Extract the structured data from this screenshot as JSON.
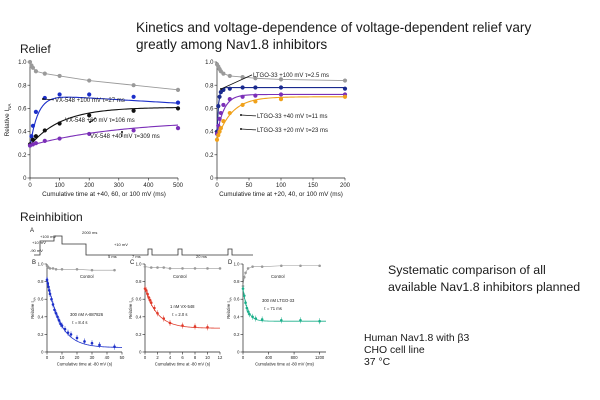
{
  "slide": {
    "title": "Kinetics and voltage-dependence of voltage-dependent relief vary greatly among Nav1.8 inhibitors",
    "relief_heading": "Relief",
    "reinhibition_heading": "Reinhibition",
    "right_note": "Systematic comparison of all available Nav1.8 inhibitors planned",
    "cell_note": [
      "Human Nav1.8 with β3",
      "CHO cell line",
      "37 °C"
    ]
  },
  "protocol": {
    "panel_letter": "A",
    "labels": [
      "+100 mV",
      "+10 mV",
      "-90 mV",
      "2000 ms",
      "5 ms",
      "7 ms",
      "+10 mV",
      "20 ms"
    ]
  },
  "colors": {
    "control": "#9a9a9a",
    "blue": "#1b2ec9",
    "black": "#111111",
    "purple": "#7b2fb8",
    "orange": "#f0a11a",
    "navy": "#1a2a8e",
    "red": "#e03a2a",
    "green": "#1aaf8a"
  },
  "chart_data": [
    {
      "id": "vx548-relief",
      "type": "line",
      "xlabel": "Cumulative time  at +40, 60, or 100 mV (ms)",
      "ylabel": "Relative I",
      "ylabel_sub": "NA",
      "xlim": [
        0,
        500
      ],
      "ylim": [
        0,
        1.0
      ],
      "xticks": [
        0,
        100,
        200,
        300,
        400,
        500
      ],
      "yticks": [
        0,
        0.2,
        0.4,
        0.6,
        0.8,
        1.0
      ],
      "ytick_labels": [
        "0",
        "0.2",
        "0.4",
        "0.6",
        "0.8",
        "1.0"
      ],
      "annotations": [
        "VX-548 +100 mV τ=27 ms",
        "VX-548 +60 mV τ=106 ms",
        "VX-548 +40 mV τ=309 ms"
      ],
      "series": [
        {
          "name": "Control",
          "color": "control",
          "x": [
            0,
            5,
            10,
            20,
            50,
            100,
            200,
            350,
            500
          ],
          "y": [
            1.0,
            0.97,
            0.95,
            0.92,
            0.9,
            0.88,
            0.84,
            0.8,
            0.76
          ]
        },
        {
          "name": "VX-548 +100 mV",
          "color": "blue",
          "x": [
            0,
            5,
            10,
            20,
            50,
            100,
            200,
            350,
            500
          ],
          "y": [
            0.28,
            0.36,
            0.45,
            0.57,
            0.69,
            0.72,
            0.72,
            0.7,
            0.65
          ],
          "fit": {
            "y0": 0.27,
            "a": 0.45,
            "tau": 27,
            "drift": -0.00015
          }
        },
        {
          "name": "VX-548 +60 mV",
          "color": "black",
          "x": [
            0,
            10,
            20,
            50,
            100,
            200,
            350,
            500
          ],
          "y": [
            0.29,
            0.33,
            0.36,
            0.41,
            0.47,
            0.54,
            0.58,
            0.6
          ],
          "fit": {
            "y0": 0.28,
            "a": 0.33,
            "tau": 106
          }
        },
        {
          "name": "VX-548 +40 mV",
          "color": "purple",
          "x": [
            0,
            10,
            20,
            50,
            100,
            200,
            350,
            500
          ],
          "y": [
            0.28,
            0.29,
            0.3,
            0.32,
            0.34,
            0.38,
            0.41,
            0.43
          ],
          "fit": {
            "y0": 0.28,
            "a": 0.22,
            "tau": 309
          }
        }
      ]
    },
    {
      "id": "ltgo33-relief",
      "type": "line",
      "xlabel": "Cumulative time  at +20, 40, or 100 mV (ms)",
      "ylabel": "",
      "xlim": [
        0,
        200
      ],
      "ylim": [
        0,
        1.0
      ],
      "xticks": [
        0,
        50,
        100,
        150,
        200
      ],
      "yticks": [
        0,
        0.2,
        0.4,
        0.6,
        0.8,
        1.0
      ],
      "ytick_labels": [
        "0",
        "0.2",
        "0.4",
        "0.6",
        "0.8",
        "1.0"
      ],
      "annotations": [
        "LTGO-33 +100 mV τ=2.5 ms",
        "LTGO-33 +40 mV τ=11 ms",
        "LTGO-33 +20 mV τ=23 ms"
      ],
      "series": [
        {
          "name": "Control",
          "color": "control",
          "x": [
            0,
            2,
            4,
            6,
            10,
            20,
            40,
            60,
            100,
            200
          ],
          "y": [
            0.98,
            0.96,
            0.94,
            0.92,
            0.9,
            0.88,
            0.87,
            0.86,
            0.85,
            0.84
          ]
        },
        {
          "name": "LTGO-33 +100 mV",
          "color": "navy",
          "x": [
            0,
            2,
            4,
            6,
            10,
            20,
            40,
            60,
            100,
            200
          ],
          "y": [
            0.4,
            0.62,
            0.7,
            0.74,
            0.76,
            0.77,
            0.78,
            0.78,
            0.78,
            0.77
          ],
          "fit": {
            "y0": 0.4,
            "a": 0.38,
            "tau": 2.5
          }
        },
        {
          "name": "LTGO-33 +40 mV",
          "color": "purple",
          "x": [
            0,
            2,
            4,
            6,
            10,
            20,
            40,
            60,
            100,
            200
          ],
          "y": [
            0.38,
            0.45,
            0.51,
            0.56,
            0.63,
            0.68,
            0.7,
            0.71,
            0.72,
            0.72
          ],
          "fit": {
            "y0": 0.37,
            "a": 0.35,
            "tau": 11
          }
        },
        {
          "name": "LTGO-33 +20 mV",
          "color": "orange",
          "x": [
            0,
            2,
            4,
            6,
            10,
            20,
            40,
            60,
            100,
            200
          ],
          "y": [
            0.33,
            0.37,
            0.4,
            0.43,
            0.49,
            0.56,
            0.63,
            0.66,
            0.68,
            0.7
          ],
          "fit": {
            "y0": 0.33,
            "a": 0.37,
            "tau": 23
          }
        }
      ]
    },
    {
      "id": "a887826-reinhibition",
      "type": "scatter",
      "panel": "B",
      "xlabel": "Cumulative time at -80 mV (s)",
      "ylabel": "Relative I",
      "ylabel_sub": "NA",
      "xlim": [
        0,
        50
      ],
      "ylim": [
        0,
        1.0
      ],
      "xticks": [
        0,
        10,
        20,
        30,
        40,
        50
      ],
      "yticks": [
        0,
        0.2,
        0.4,
        0.6,
        0.8,
        1.0
      ],
      "ytick_labels": [
        "0",
        "0.2",
        "0.4",
        "0.6",
        "0.8",
        "1.0"
      ],
      "annotations": [
        "Control",
        "300 nM A-887826",
        "τ = 8.4 s"
      ],
      "series": [
        {
          "name": "Control",
          "color": "control",
          "x": [
            0,
            0.5,
            1,
            2,
            4,
            6,
            10,
            20,
            30,
            45
          ],
          "y": [
            0.98,
            0.97,
            0.96,
            0.95,
            0.95,
            0.94,
            0.94,
            0.94,
            0.93,
            0.93
          ]
        },
        {
          "name": "300 nM A-887826",
          "color": "blue",
          "x": [
            0,
            0.5,
            1,
            1.5,
            2,
            3,
            4,
            5,
            6,
            7,
            8,
            9,
            10,
            12,
            14,
            16,
            20,
            25,
            30,
            35,
            45
          ],
          "y": [
            0.82,
            0.78,
            0.74,
            0.7,
            0.66,
            0.6,
            0.54,
            0.48,
            0.44,
            0.4,
            0.36,
            0.32,
            0.3,
            0.26,
            0.22,
            0.2,
            0.16,
            0.12,
            0.1,
            0.08,
            0.06
          ],
          "fit": {
            "y0": 0.85,
            "a": -0.8,
            "tau": 8.4
          }
        }
      ]
    },
    {
      "id": "vx548-reinhibition",
      "type": "scatter",
      "panel": "C",
      "xlabel": "Cumulative time at -80 mV (s)",
      "ylabel": "Relative I",
      "ylabel_sub": "NA",
      "xlim": [
        0,
        12
      ],
      "ylim": [
        0,
        1.0
      ],
      "xticks": [
        0,
        2,
        4,
        6,
        8,
        10,
        12
      ],
      "yticks": [
        0,
        0.2,
        0.4,
        0.6,
        0.8,
        1.0
      ],
      "ytick_labels": [
        "0",
        "0.2",
        "0.4",
        "0.6",
        "0.8",
        "1.0"
      ],
      "annotations": [
        "Control",
        "1 nM VX-548",
        "τ = 2.0 s"
      ],
      "series": [
        {
          "name": "Control",
          "color": "control",
          "x": [
            0,
            1,
            2,
            3,
            4,
            6,
            8,
            10,
            12
          ],
          "y": [
            0.97,
            0.96,
            0.96,
            0.96,
            0.95,
            0.95,
            0.95,
            0.95,
            0.95
          ]
        },
        {
          "name": "1 nM VX-548",
          "color": "red",
          "x": [
            0,
            0.2,
            0.4,
            0.6,
            0.8,
            1.0,
            1.5,
            2,
            3,
            4,
            6,
            8,
            10
          ],
          "y": [
            0.72,
            0.7,
            0.66,
            0.62,
            0.59,
            0.56,
            0.5,
            0.44,
            0.38,
            0.33,
            0.3,
            0.29,
            0.28
          ],
          "fit": {
            "y0": 0.72,
            "a": -0.45,
            "tau": 2.0
          }
        }
      ]
    },
    {
      "id": "ltgo33-reinhibition",
      "type": "scatter",
      "panel": "D",
      "xlabel": "Cumulative time at -80 mV (ms)",
      "ylabel": "Relative I",
      "ylabel_sub": "NA",
      "xlim": [
        0,
        1300
      ],
      "ylim": [
        0,
        1.0
      ],
      "xticks": [
        0,
        400,
        800,
        1200
      ],
      "yticks": [
        0,
        0.2,
        0.4,
        0.6,
        0.8,
        1.0
      ],
      "ytick_labels": [
        "0",
        "0.2",
        "0.4",
        "0.6",
        "0.8",
        "1.0"
      ],
      "annotations": [
        "Control",
        "300 nM LTGO-33",
        "τ = 71 ms"
      ],
      "series": [
        {
          "name": "Control",
          "color": "control",
          "x": [
            0,
            20,
            40,
            80,
            150,
            300,
            600,
            900,
            1200
          ],
          "y": [
            0.75,
            0.85,
            0.9,
            0.95,
            0.97,
            0.97,
            0.98,
            0.98,
            0.98
          ]
        },
        {
          "name": "300 nM LTGO-33",
          "color": "green",
          "x": [
            0,
            20,
            40,
            60,
            80,
            100,
            150,
            200,
            300,
            600,
            900,
            1200
          ],
          "y": [
            0.72,
            0.64,
            0.56,
            0.5,
            0.46,
            0.43,
            0.4,
            0.38,
            0.37,
            0.36,
            0.36,
            0.35
          ],
          "fit": {
            "y0": 0.72,
            "a": -0.37,
            "tau": 71
          }
        }
      ]
    }
  ]
}
